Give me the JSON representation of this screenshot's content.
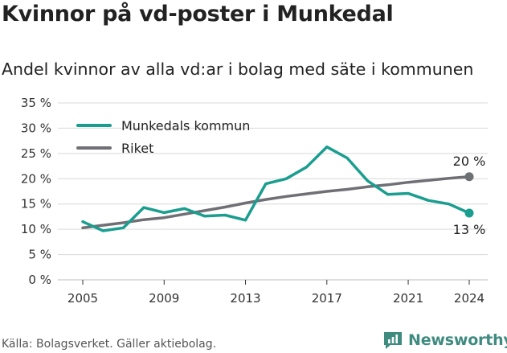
{
  "header": {
    "title": "Kvinnor på vd-poster i Munkedal",
    "subtitle": "Andel kvinnor av alla vd:ar i bolag med säte i kommunen"
  },
  "footer": {
    "source": "Källa: Bolagsverket. Gäller aktiebolag.",
    "brand": "Newsworthy"
  },
  "colors": {
    "munkedal": "#1a9e8f",
    "riket": "#6f6f76",
    "grid": "#d9d9d9",
    "brand": "#3f8b80"
  },
  "chart_data": {
    "type": "line",
    "title": "Kvinnor på vd-poster i Munkedal",
    "subtitle": "Andel kvinnor av alla vd:ar i bolag med säte i kommunen",
    "xlabel": "",
    "ylabel": "",
    "xlim": [
      2005,
      2024
    ],
    "ylim": [
      0,
      35
    ],
    "x_ticks": [
      2005,
      2009,
      2013,
      2017,
      2021,
      2024
    ],
    "y_ticks": [
      {
        "value": 0,
        "label": "0 %"
      },
      {
        "value": 5,
        "label": "5 %"
      },
      {
        "value": 10,
        "label": "10 %"
      },
      {
        "value": 15,
        "label": "15 %"
      },
      {
        "value": 20,
        "label": "20 %"
      },
      {
        "value": 25,
        "label": "25 %"
      },
      {
        "value": 30,
        "label": "30 %"
      },
      {
        "value": 35,
        "label": "35 %"
      }
    ],
    "grid": "horizontal",
    "legend_position": "top-left",
    "x": [
      2005,
      2006,
      2007,
      2008,
      2009,
      2010,
      2011,
      2012,
      2013,
      2014,
      2015,
      2016,
      2017,
      2018,
      2019,
      2020,
      2021,
      2022,
      2023,
      2024
    ],
    "series": [
      {
        "name": "Munkedals kommun",
        "color": "#1a9e8f",
        "values": [
          11.5,
          9.7,
          10.3,
          14.3,
          13.3,
          14.1,
          12.6,
          12.8,
          11.8,
          19.0,
          20.0,
          22.3,
          26.3,
          24.1,
          19.6,
          16.9,
          17.1,
          15.7,
          15.0,
          13.2
        ],
        "end_label": "13 %"
      },
      {
        "name": "Riket",
        "color": "#6f6f76",
        "values": [
          10.3,
          10.8,
          11.3,
          11.9,
          12.3,
          13.0,
          13.7,
          14.4,
          15.2,
          15.9,
          16.5,
          17.0,
          17.5,
          17.9,
          18.4,
          18.8,
          19.3,
          19.7,
          20.1,
          20.4
        ],
        "end_label": "20 %"
      }
    ]
  }
}
